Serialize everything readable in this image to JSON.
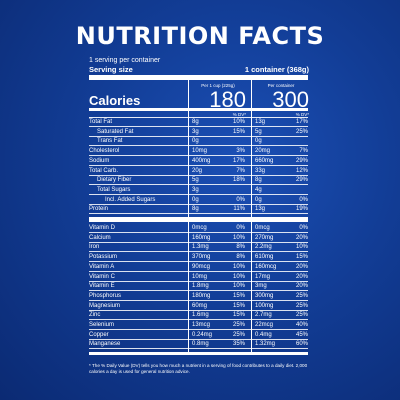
{
  "title": "NUTRITION FACTS",
  "serving_line": "1 serving per container",
  "serving_size_label": "Serving size",
  "serving_size_value": "1 container (368g)",
  "calories_label": "Calories",
  "col1_head": "Per 1 cup (225g)",
  "col2_head": "Per container",
  "col1_calories": "180",
  "col2_calories": "300",
  "dv_head": "% DV*",
  "rows_top": [
    {
      "label": "Total Fat",
      "indent": 0,
      "a1": "8g",
      "p1": "10%",
      "a2": "13g",
      "p2": "17%"
    },
    {
      "label": "Saturated Fat",
      "indent": 1,
      "a1": "3g",
      "p1": "15%",
      "a2": "5g",
      "p2": "25%"
    },
    {
      "label": "Trans Fat",
      "indent": 1,
      "a1": "0g",
      "p1": "",
      "a2": "0g",
      "p2": ""
    },
    {
      "label": "Cholesterol",
      "indent": 0,
      "a1": "10mg",
      "p1": "3%",
      "a2": "20mg",
      "p2": "7%"
    },
    {
      "label": "Sodium",
      "indent": 0,
      "a1": "400mg",
      "p1": "17%",
      "a2": "660mg",
      "p2": "29%"
    },
    {
      "label": "Total Carb.",
      "indent": 0,
      "a1": "20g",
      "p1": "7%",
      "a2": "33g",
      "p2": "12%"
    },
    {
      "label": "Dietary Fiber",
      "indent": 1,
      "a1": "5g",
      "p1": "18%",
      "a2": "8g",
      "p2": "29%"
    },
    {
      "label": "Total Sugars",
      "indent": 1,
      "a1": "3g",
      "p1": "",
      "a2": "4g",
      "p2": ""
    },
    {
      "label": "Incl. Added Sugars",
      "indent": 2,
      "a1": "0g",
      "p1": "0%",
      "a2": "0g",
      "p2": "0%"
    },
    {
      "label": "Protein",
      "indent": 0,
      "a1": "8g",
      "p1": "11%",
      "a2": "13g",
      "p2": "19%"
    }
  ],
  "rows_vit": [
    {
      "label": "Vitamin D",
      "a1": "0mcg",
      "p1": "0%",
      "a2": "0mcg",
      "p2": "0%"
    },
    {
      "label": "Calcium",
      "a1": "160mg",
      "p1": "10%",
      "a2": "270mg",
      "p2": "20%"
    },
    {
      "label": "Iron",
      "a1": "1.3mg",
      "p1": "8%",
      "a2": "2.2mg",
      "p2": "10%"
    },
    {
      "label": "Potassium",
      "a1": "370mg",
      "p1": "8%",
      "a2": "610mg",
      "p2": "15%"
    },
    {
      "label": "Vitamin A",
      "a1": "90mcg",
      "p1": "10%",
      "a2": "160mcg",
      "p2": "20%"
    },
    {
      "label": "Vitamin C",
      "a1": "10mg",
      "p1": "10%",
      "a2": "17mg",
      "p2": "20%"
    },
    {
      "label": "Vitamin E",
      "a1": "1.8mg",
      "p1": "10%",
      "a2": "3mg",
      "p2": "20%"
    },
    {
      "label": "Phosphorus",
      "a1": "180mg",
      "p1": "15%",
      "a2": "300mg",
      "p2": "25%"
    },
    {
      "label": "Magnesium",
      "a1": "60mg",
      "p1": "15%",
      "a2": "100mg",
      "p2": "25%"
    },
    {
      "label": "Zinc",
      "a1": "1.6mg",
      "p1": "15%",
      "a2": "2.7mg",
      "p2": "25%"
    },
    {
      "label": "Selenium",
      "a1": "13mcg",
      "p1": "25%",
      "a2": "22mcg",
      "p2": "40%"
    },
    {
      "label": "Copper",
      "a1": "0.24mg",
      "p1": "25%",
      "a2": "0.4mg",
      "p2": "45%"
    },
    {
      "label": "Manganese",
      "a1": "0.8mg",
      "p1": "35%",
      "a2": "1.32mg",
      "p2": "60%"
    }
  ],
  "footnote": "* The % Daily Value (DV) tells you how much a nutrient in a serving of food contributes to a daily diet. 2,000 calories a day is used for general nutrition advice."
}
